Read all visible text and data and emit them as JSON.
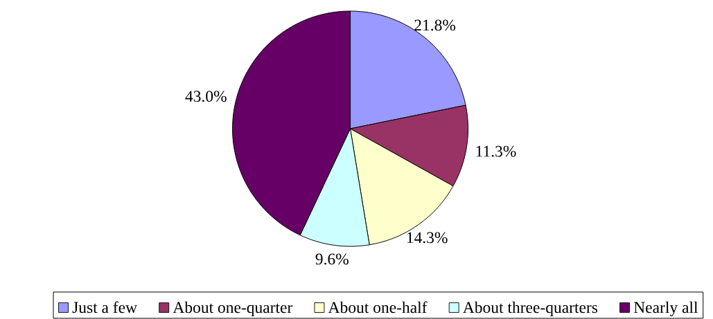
{
  "chart_data": {
    "type": "pie",
    "categories": [
      "Just a few",
      "About one-quarter",
      "About one-half",
      "About three-quarters",
      "Nearly all"
    ],
    "values": [
      21.8,
      11.3,
      14.3,
      9.6,
      43.0
    ],
    "colors": [
      "#9999ff",
      "#993366",
      "#ffffcc",
      "#ccffff",
      "#660066"
    ],
    "value_labels": [
      "21.8%",
      "11.3%",
      "14.3%",
      "9.6%",
      "43.0%"
    ],
    "legend": "bottom"
  }
}
